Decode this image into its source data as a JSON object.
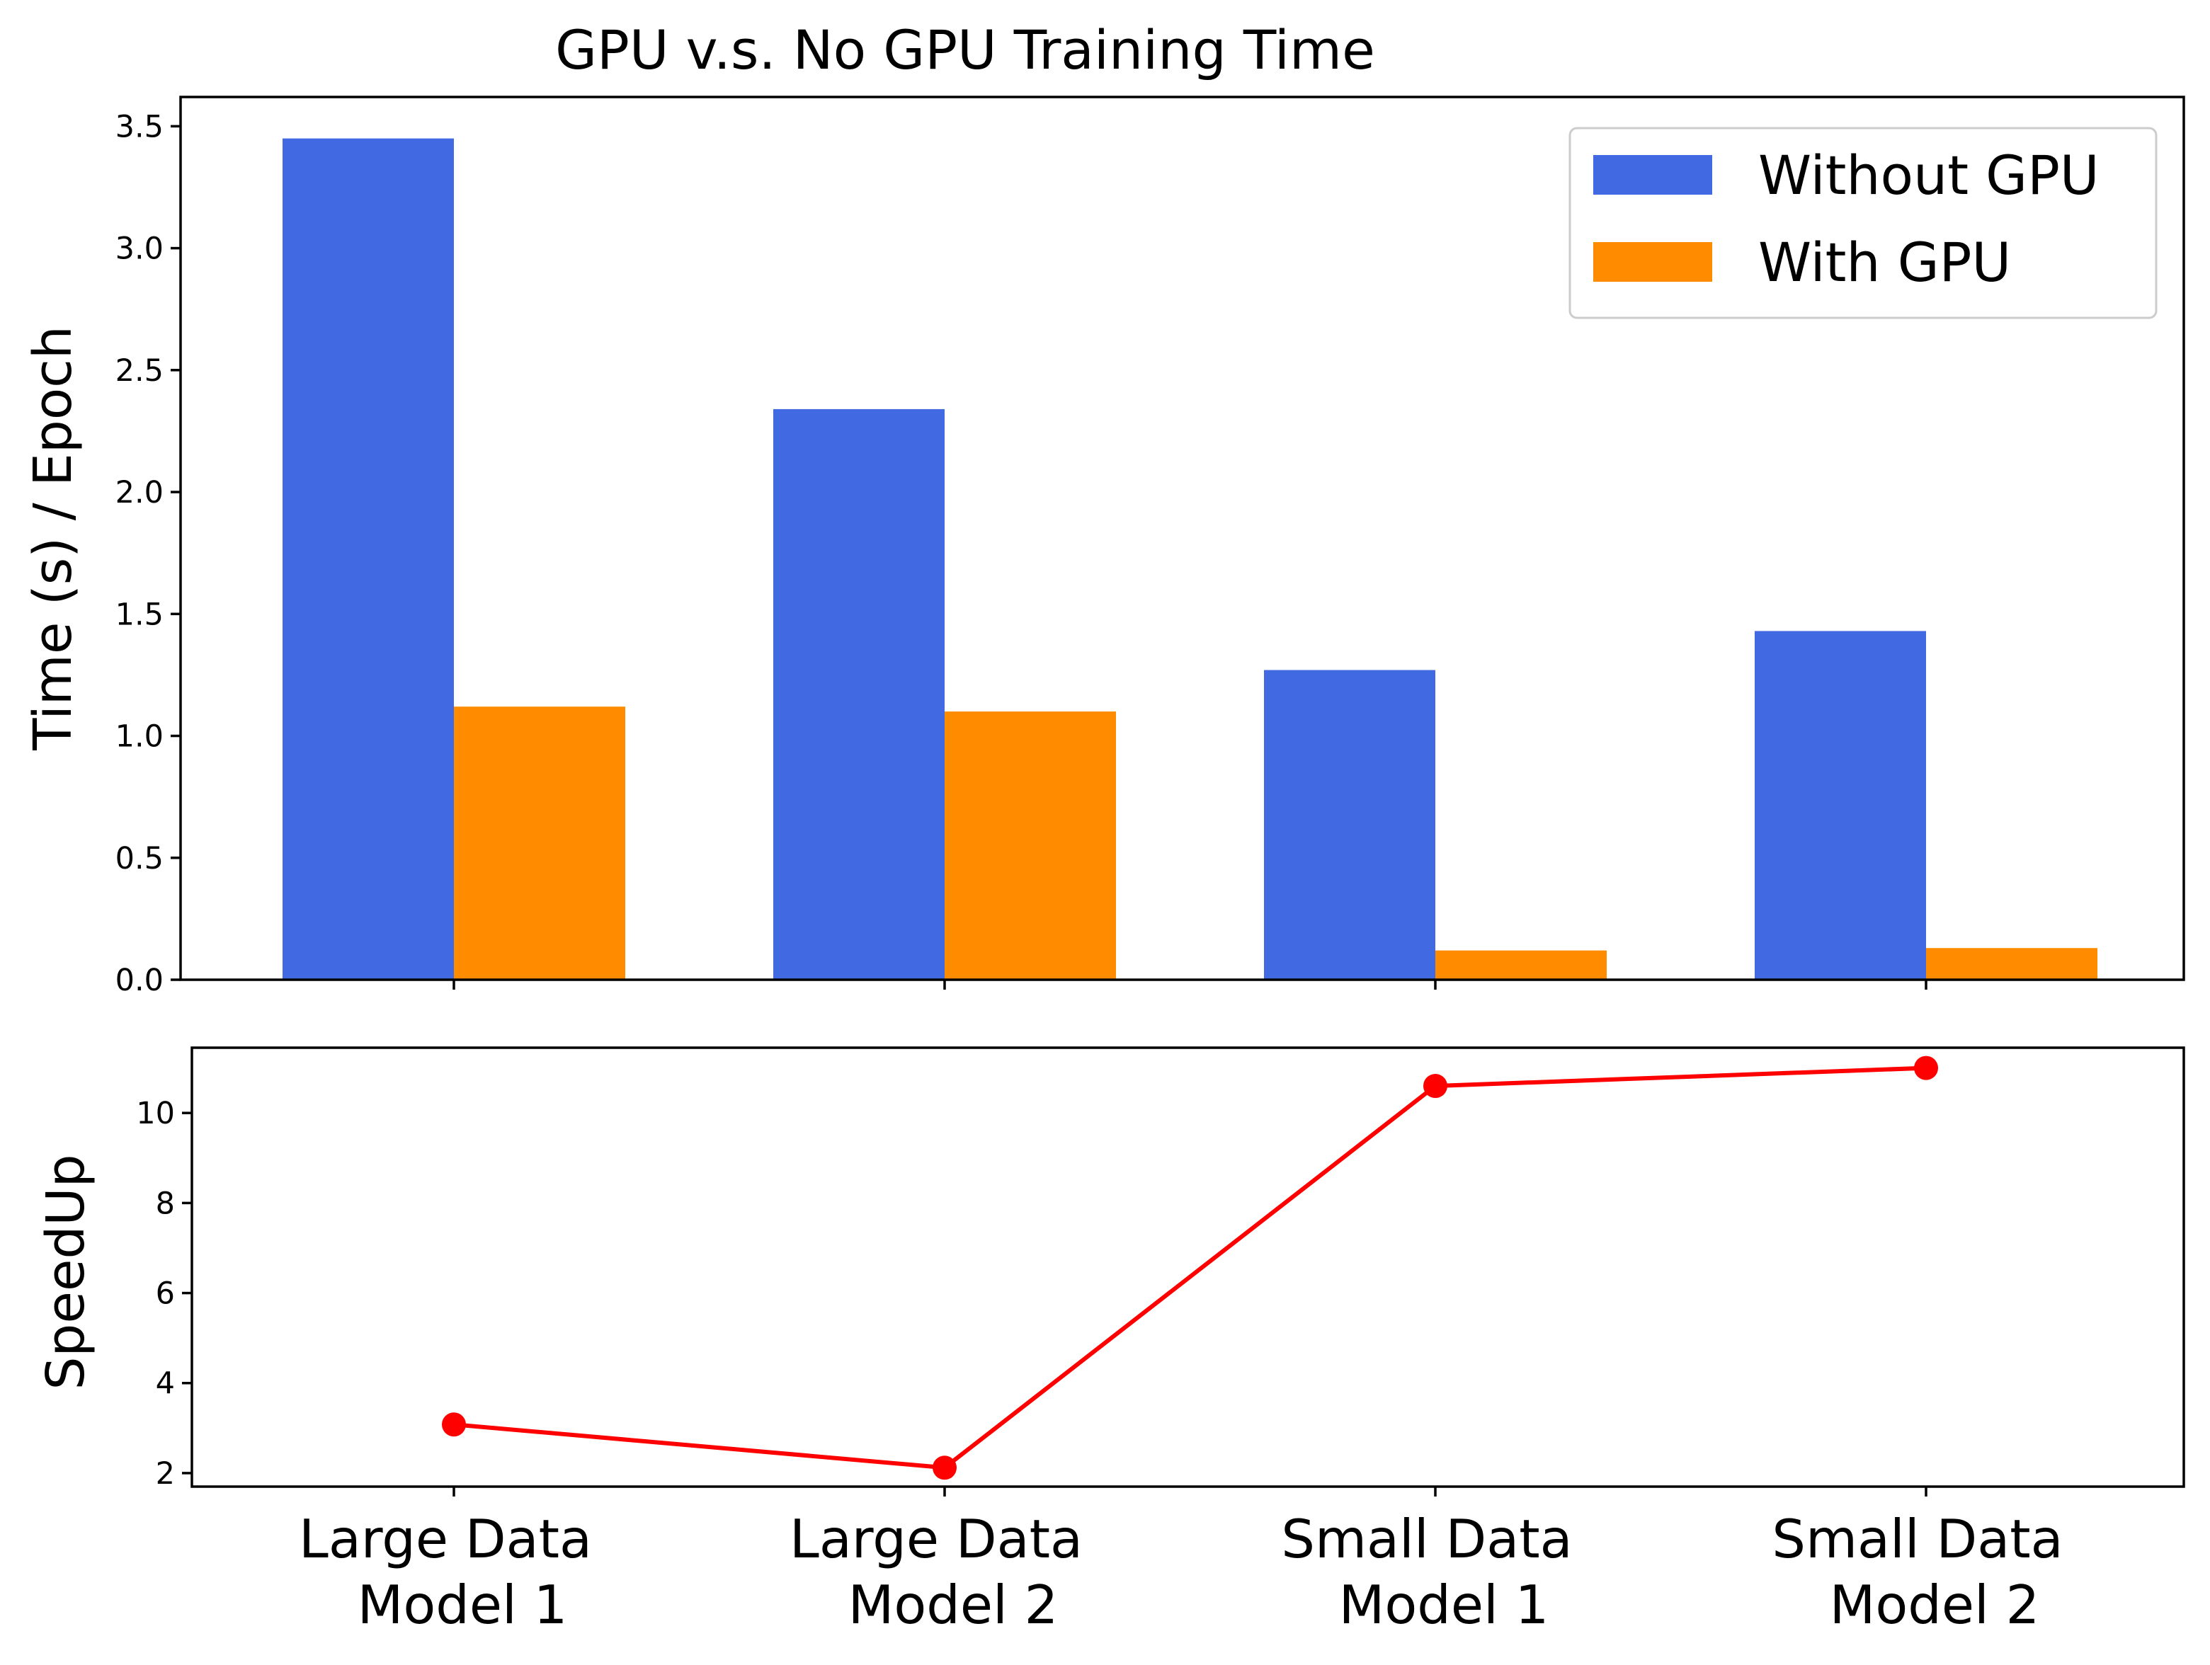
{
  "chart_data": [
    {
      "type": "bar",
      "title": "GPU v.s. No GPU Training Time",
      "xlabel": "",
      "ylabel": "Time (s) / Epoch",
      "categories": [
        "Large Data\nModel 1",
        "Large Data\nModel 2",
        "Small Data\nModel 1",
        "Small Data\nModel 2"
      ],
      "series": [
        {
          "name": "Without GPU",
          "color": "#4169e1",
          "values": [
            3.45,
            2.34,
            1.27,
            1.43
          ]
        },
        {
          "name": "With GPU",
          "color": "#ff8c00",
          "values": [
            1.12,
            1.1,
            0.12,
            0.13
          ]
        }
      ],
      "ylim": [
        0,
        3.62
      ],
      "yticks": [
        0.0,
        0.5,
        1.0,
        1.5,
        2.0,
        2.5,
        3.0,
        3.5
      ],
      "ytick_labels": [
        "0.0",
        "0.5",
        "1.0",
        "1.5",
        "2.0",
        "2.5",
        "3.0",
        "3.5"
      ],
      "grid": false,
      "legend": "top-right"
    },
    {
      "type": "line",
      "title": "",
      "xlabel": "",
      "ylabel": "SpeedUp",
      "categories": [
        "Large Data\nModel 1",
        "Large Data\nModel 2",
        "Small Data\nModel 1",
        "Small Data\nModel 2"
      ],
      "series": [
        {
          "color": "#ff0000",
          "values": [
            3.08,
            2.12,
            10.6,
            11.0
          ]
        }
      ],
      "ylim": [
        1.7,
        11.45
      ],
      "yticks": [
        2,
        4,
        6,
        8,
        10
      ],
      "ytick_labels": [
        "2",
        "4",
        "6",
        "8",
        "10"
      ],
      "grid": false,
      "markers": true
    }
  ]
}
